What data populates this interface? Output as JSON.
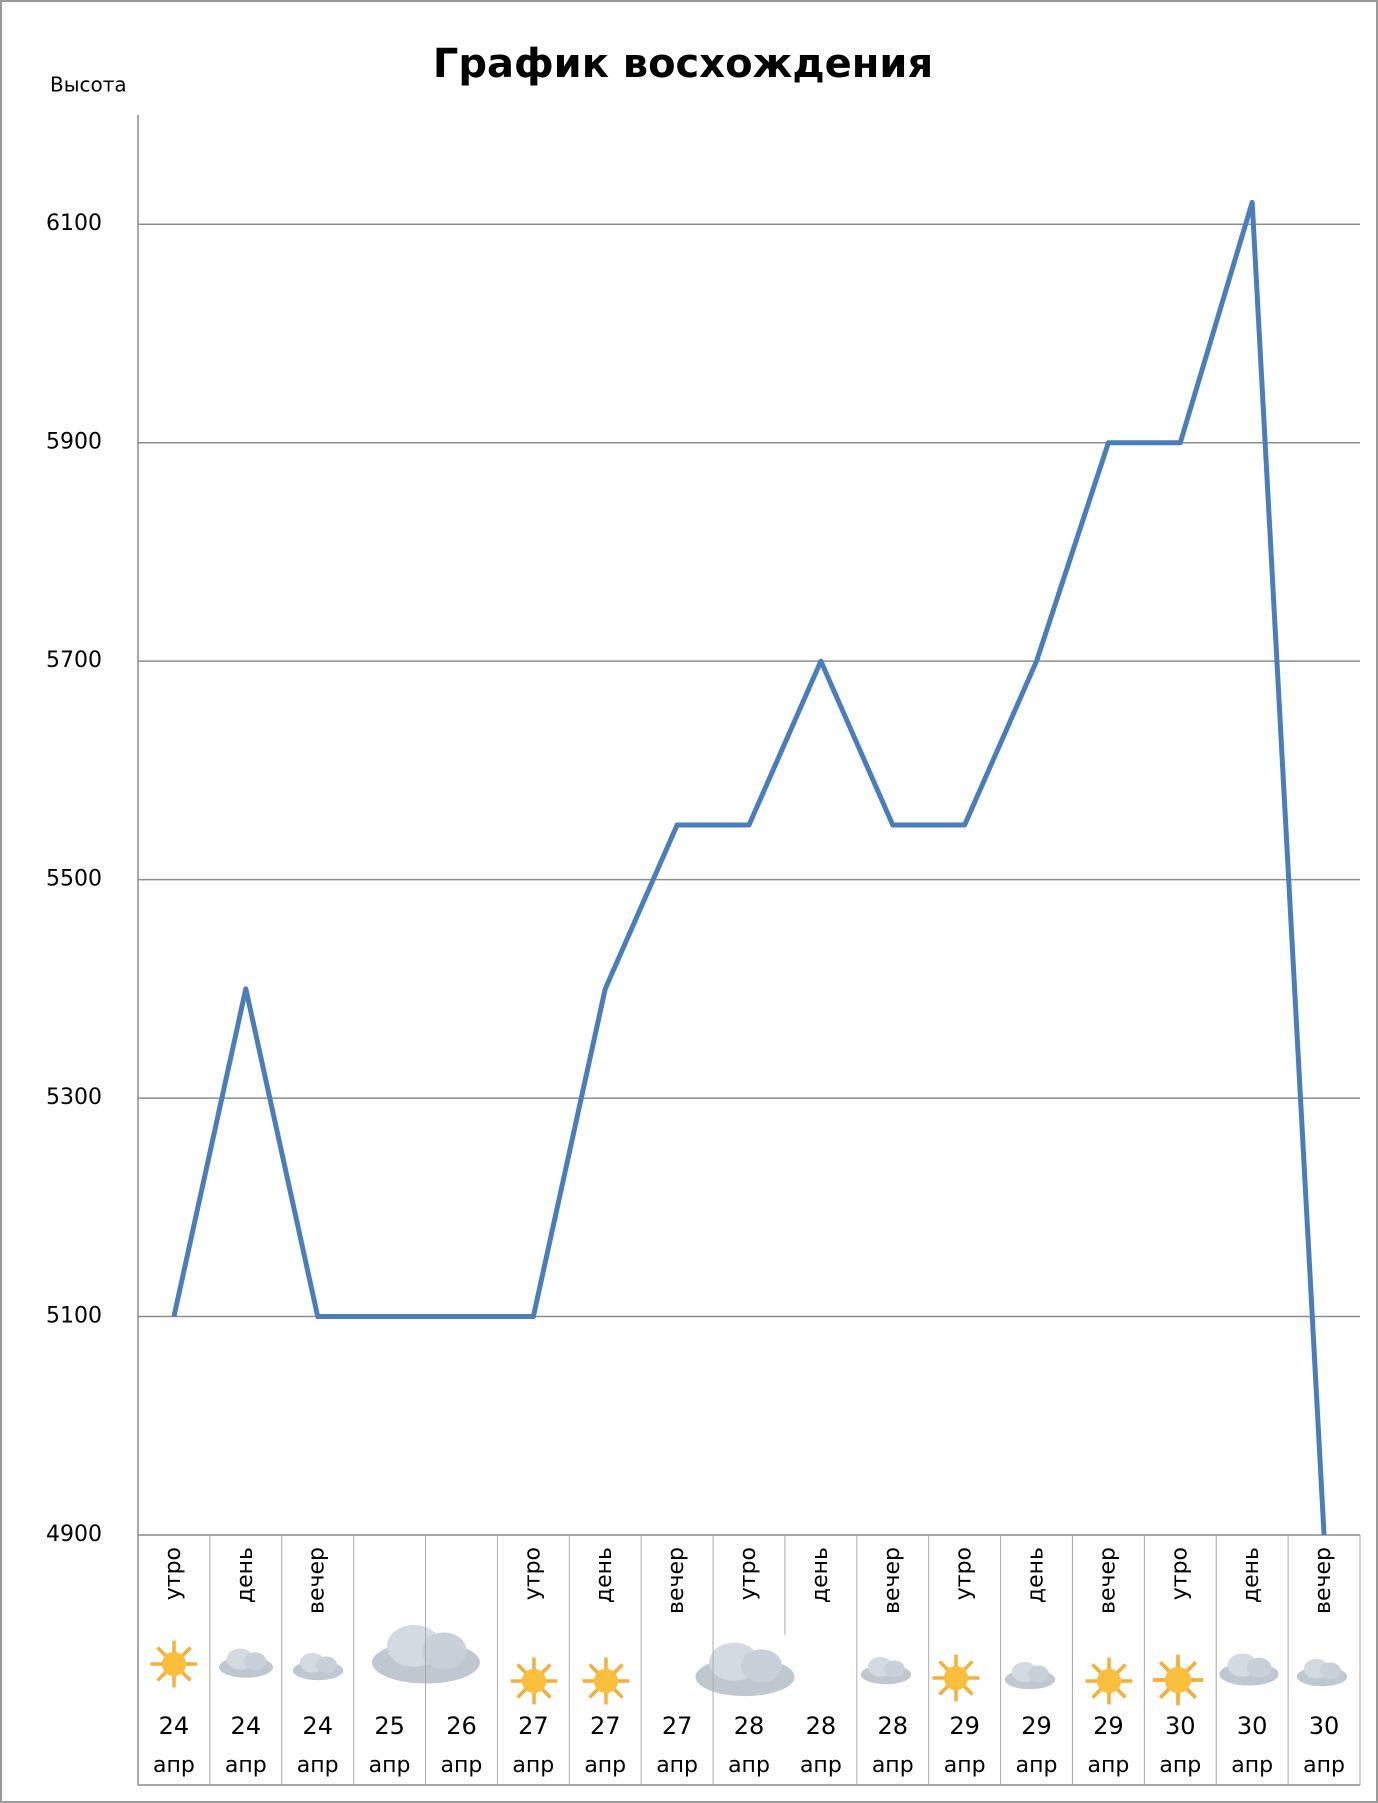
{
  "chart_data": {
    "type": "line",
    "title": "График восхождения",
    "y_label": "Высота",
    "categories": [
      "утро",
      "день",
      "вечер",
      null,
      null,
      "утро",
      "день",
      "вечер",
      "утро",
      "день",
      "вечер",
      "утро",
      "день",
      "вечер",
      "утро",
      "день",
      "вечер"
    ],
    "days": [
      "24",
      "24",
      "24",
      "25",
      "26",
      "27",
      "27",
      "27",
      "28",
      "28",
      "28",
      "29",
      "29",
      "29",
      "30",
      "30",
      "30"
    ],
    "months": [
      "апр",
      "апр",
      "апр",
      "апр",
      "апр",
      "апр",
      "апр",
      "апр",
      "апр",
      "апр",
      "апр",
      "апр",
      "апр",
      "апр",
      "апр",
      "апр",
      "апр"
    ],
    "values": [
      5100,
      5400,
      5100,
      5100,
      5100,
      5100,
      5400,
      5550,
      5550,
      5700,
      5550,
      5550,
      5700,
      5900,
      5900,
      6120,
      4900
    ],
    "color": "#4a7ebb",
    "ylim": [
      4900,
      6200
    ],
    "yticks": [
      4900,
      5100,
      5300,
      5500,
      5700,
      5900,
      6100
    ],
    "grid": true
  }
}
